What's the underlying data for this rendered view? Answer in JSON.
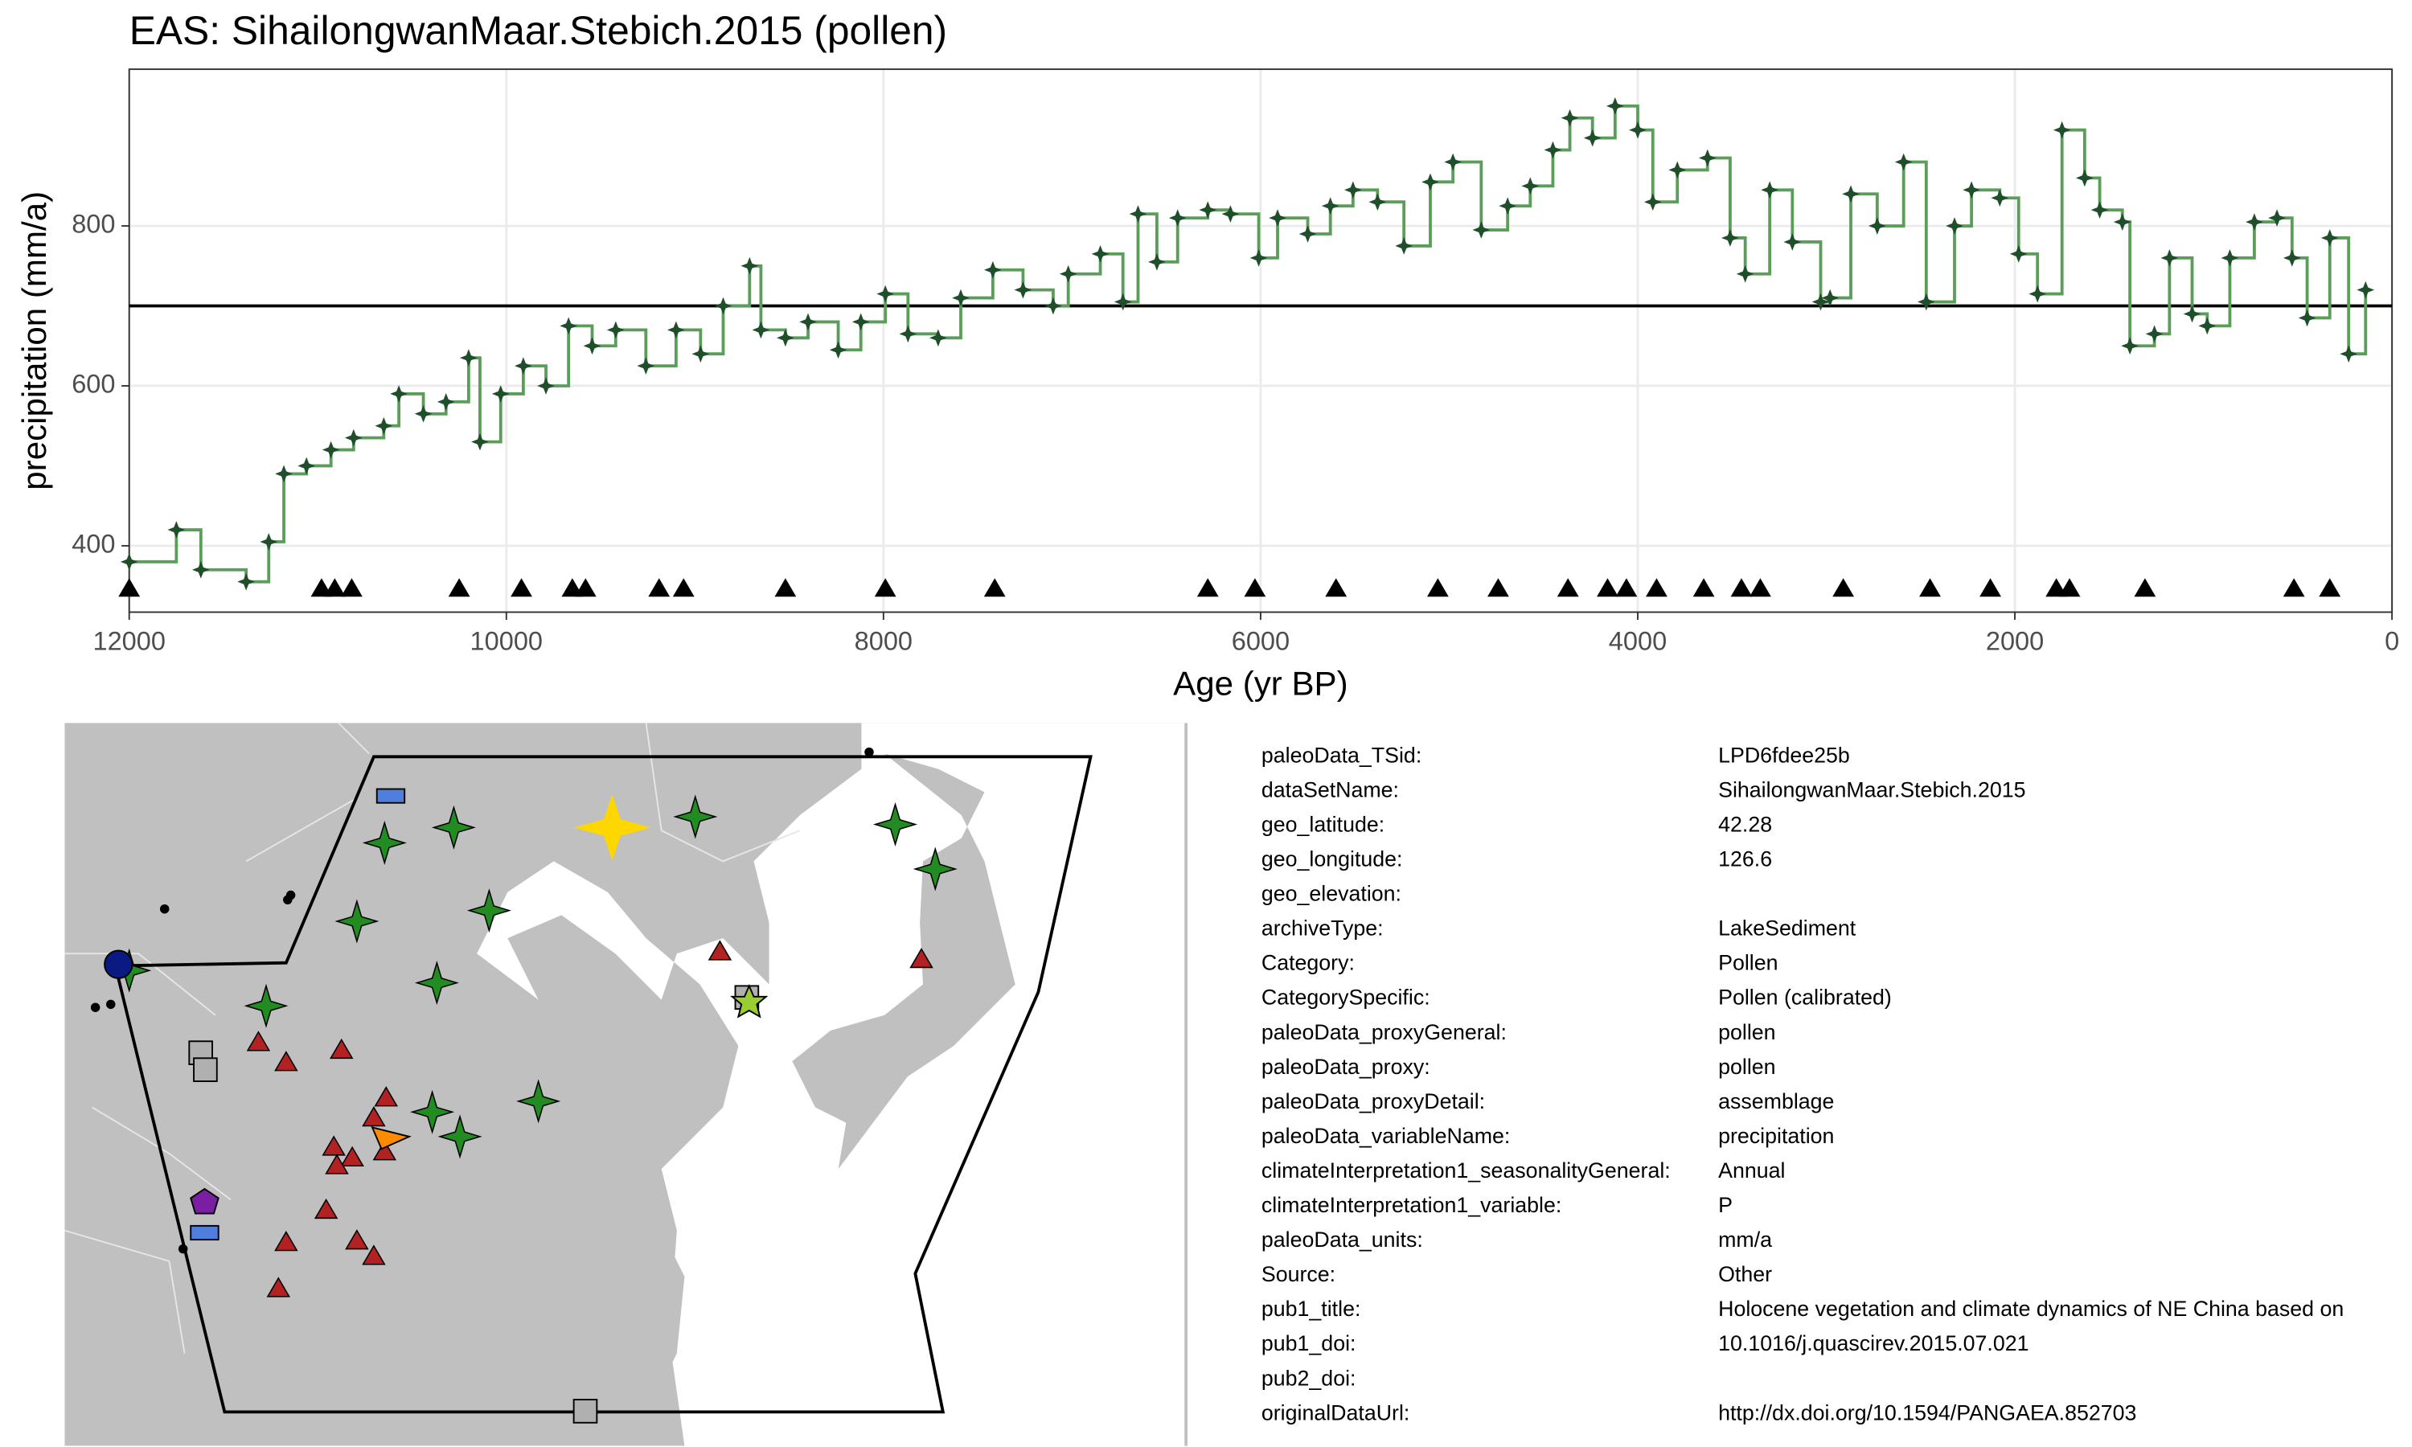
{
  "chart_data": {
    "type": "step",
    "title": "EAS: SihailongwanMaar.Stebich.2015 (pollen)",
    "x_label": "Age (yr BP)",
    "y_label": "precipitation (mm/a)",
    "xlim": [
      12000,
      0
    ],
    "ylim": [
      317,
      996
    ],
    "xticks": [
      12000,
      10000,
      8000,
      6000,
      4000,
      2000,
      0
    ],
    "yticks": [
      400,
      600,
      800
    ],
    "grid": true,
    "hline": 700,
    "series": [
      {
        "color": "#5a9e5a",
        "marker_color": "#1f4f2a",
        "marker": "star",
        "x": [
          12000,
          11750,
          11620,
          11380,
          11260,
          11180,
          11060,
          10930,
          10810,
          10650,
          10570,
          10440,
          10320,
          10200,
          10140,
          10030,
          9910,
          9790,
          9670,
          9545,
          9420,
          9260,
          9100,
          8970,
          8850,
          8710,
          8650,
          8520,
          8400,
          8240,
          8120,
          7990,
          7870,
          7710,
          7590,
          7420,
          7260,
          7100,
          7020,
          6850,
          6730,
          6650,
          6550,
          6440,
          6280,
          6160,
          6010,
          5910,
          5750,
          5630,
          5510,
          5380,
          5240,
          5100,
          4980,
          4830,
          4690,
          4570,
          4450,
          4360,
          4240,
          4120,
          4000,
          3920,
          3790,
          3630,
          3510,
          3430,
          3300,
          3180,
          3030,
          2980,
          2870,
          2730,
          2590,
          2470,
          2320,
          2230,
          2080,
          1980,
          1880,
          1750,
          1630,
          1550,
          1430,
          1390,
          1260,
          1180,
          1060,
          980,
          860,
          730,
          610,
          530,
          450,
          330,
          230,
          140
        ],
        "values": [
          380,
          420,
          370,
          355,
          405,
          490,
          500,
          520,
          535,
          550,
          590,
          565,
          580,
          635,
          530,
          590,
          625,
          600,
          675,
          650,
          670,
          625,
          670,
          640,
          700,
          750,
          670,
          660,
          680,
          645,
          680,
          715,
          665,
          660,
          710,
          745,
          720,
          700,
          740,
          765,
          705,
          815,
          755,
          810,
          820,
          815,
          760,
          810,
          790,
          825,
          845,
          830,
          775,
          855,
          880,
          795,
          825,
          850,
          895,
          935,
          910,
          950,
          920,
          830,
          870,
          885,
          785,
          740,
          845,
          780,
          705,
          710,
          840,
          800,
          880,
          705,
          800,
          845,
          835,
          765,
          715,
          920,
          860,
          820,
          805,
          650,
          665,
          760,
          690,
          675,
          760,
          805,
          810,
          760,
          685,
          785,
          640,
          720
        ]
      },
      {
        "color": "#000000",
        "marker": "triangle",
        "x": [
          12000,
          10980,
          10910,
          10820,
          10250,
          9920,
          9650,
          9580,
          9190,
          9060,
          8520,
          7990,
          7410,
          6280,
          6030,
          5600,
          5060,
          4740,
          4370,
          4160,
          4060,
          3900,
          3650,
          3450,
          3350,
          2910,
          2450,
          2130,
          1780,
          1710,
          1310,
          520,
          330
        ],
        "values": [
          346,
          346,
          346,
          346,
          346,
          346,
          346,
          346,
          346,
          346,
          346,
          346,
          346,
          346,
          346,
          346,
          346,
          346,
          346,
          346,
          346,
          346,
          346,
          346,
          346,
          346,
          346,
          346,
          346,
          346,
          346,
          346,
          346
        ]
      }
    ]
  },
  "metadata": {
    "rows": [
      [
        "paleoData_TSid:",
        "LPD6fdee25b"
      ],
      [
        "dataSetName:",
        "SihailongwanMaar.Stebich.2015"
      ],
      [
        "geo_latitude:",
        "42.28"
      ],
      [
        "geo_longitude:",
        "126.6"
      ],
      [
        "geo_elevation:"
      ],
      [
        "archiveType:",
        "LakeSediment"
      ],
      [
        "Category:",
        "Pollen"
      ],
      [
        "CategorySpecific:",
        "Pollen (calibrated)"
      ],
      [
        "paleoData_proxyGeneral:",
        "pollen"
      ],
      [
        "paleoData_proxy:",
        "pollen"
      ],
      [
        "paleoData_proxyDetail:",
        "assemblage"
      ],
      [
        "paleoData_variableName:",
        "precipitation"
      ],
      [
        "climateInterpretation1_seasonalityGeneral:",
        "Annual"
      ],
      [
        "climateInterpretation1_variable:",
        "P"
      ],
      [
        "paleoData_units:",
        "mm/a"
      ],
      [
        "Source:",
        "Other"
      ],
      [
        "pub1_title:",
        "Holocene vegetation and climate dynamics of NE China based on"
      ],
      [
        "pub1_doi:",
        "10.1016/j.quascirev.2015.07.021"
      ],
      [
        "pub2_doi:"
      ],
      [
        "originalDataUrl:",
        "http://dx.doi.org/10.1594/PANGAEA.852703"
      ]
    ]
  }
}
